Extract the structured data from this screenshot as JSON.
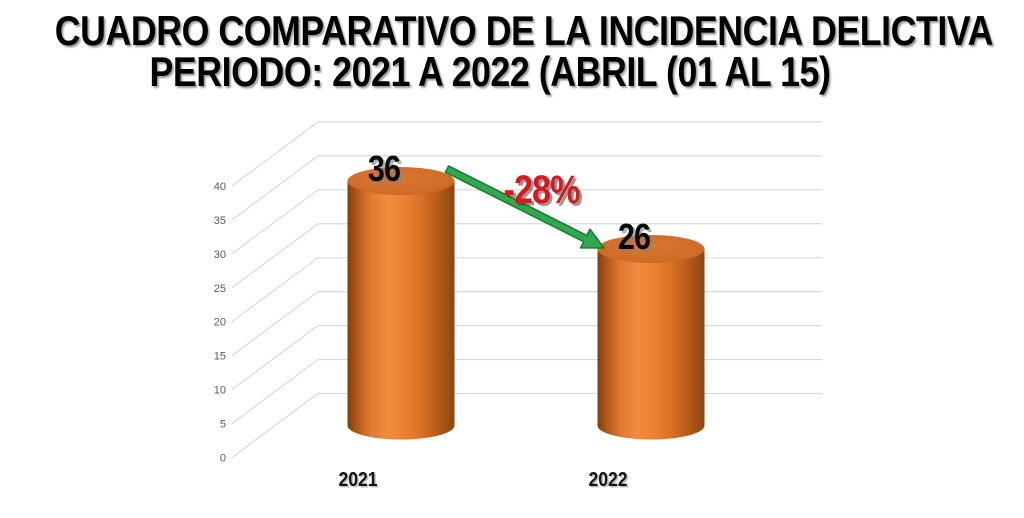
{
  "title": {
    "line1": "CUADRO COMPARATIVO DE LA INCIDENCIA DELICTIVA",
    "line2": "PERIODO: 2021 A 2022 (ABRIL (01 AL 15)"
  },
  "chart_data": {
    "type": "bar",
    "subtype": "3d-cylinder-column",
    "title": "CUADRO COMPARATIVO DE LA INCIDENCIA DELICTIVA PERIODO: 2021 A 2022 (ABRIL (01 AL 15)",
    "categories": [
      "2021",
      "2022"
    ],
    "values": [
      36,
      26
    ],
    "data_labels": [
      "36",
      "26"
    ],
    "xlabel": "",
    "ylabel": "",
    "ylim": [
      0,
      40
    ],
    "yticks": [
      0,
      5,
      10,
      15,
      20,
      25,
      30,
      35,
      40
    ],
    "grid": true,
    "legend": false,
    "annotation": {
      "text": "-28%",
      "type": "decrease-arrow",
      "from": "2021",
      "to": "2022"
    }
  },
  "colors": {
    "background": "#FFFFFF",
    "bar_fill": "#ED7D31",
    "bar_edge_dark": "#8A450E",
    "arrow_green": "#2FA94E",
    "arrow_green_dark": "#1C7A33",
    "annotation_red": "#D51920",
    "gridline": "#D9D9D9",
    "tick_label": "#595959",
    "title_text": "#000000",
    "data_label": "#000000",
    "category_label": "#141414"
  }
}
